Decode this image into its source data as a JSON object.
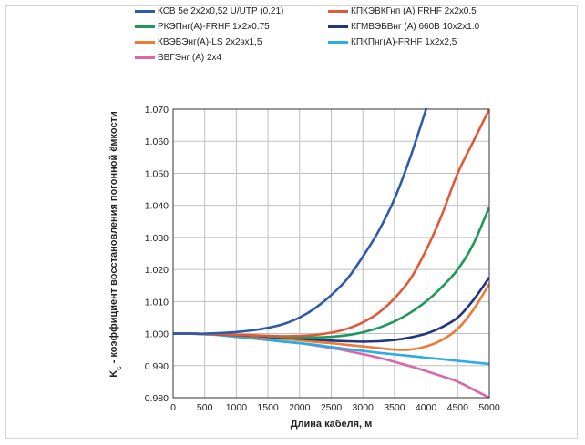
{
  "chart_data": {
    "type": "line",
    "xlabel": "Длина кабеля, м",
    "ylabel": "K",
    "ylabel_sub": "c",
    "ylabel_rest": " - коэффициент восстановления погонной ёмкости",
    "xlim": [
      0,
      5000
    ],
    "ylim": [
      0.98,
      1.07
    ],
    "x_ticks": [
      "0",
      "500",
      "1000",
      "1500",
      "2000",
      "2500",
      "3000",
      "3500",
      "4000",
      "4500",
      "5000"
    ],
    "y_ticks": [
      "0.980",
      "0.990",
      "1.000",
      "1.010",
      "1.020",
      "1.030",
      "1.040",
      "1.050",
      "1.060",
      "1.070"
    ],
    "grid": true,
    "legend_position": "top",
    "x": [
      0,
      250,
      500,
      750,
      1000,
      1250,
      1500,
      1750,
      2000,
      2250,
      2500,
      2750,
      3000,
      3250,
      3500,
      3750,
      4000,
      4250,
      4500,
      4750,
      5000
    ],
    "series": [
      {
        "name": "КСВ 5е 2x2x0,52 U/UTP (0.21)",
        "color": "#2f5aa8",
        "values": [
          1.0,
          1.0,
          1.0,
          1.0002,
          1.0005,
          1.001,
          1.0018,
          1.003,
          1.005,
          1.008,
          1.012,
          1.017,
          1.024,
          1.032,
          1.042,
          1.055,
          1.07,
          null,
          null,
          null,
          null
        ]
      },
      {
        "name": "КПКЭВКГнп (А) FRHF 2x2x0.5",
        "color": "#e4583a",
        "values": [
          1.0,
          1.0,
          0.9999,
          0.9998,
          0.9996,
          0.9995,
          0.9993,
          0.9992,
          0.9993,
          0.9996,
          1.0003,
          1.0015,
          1.0035,
          1.0065,
          1.011,
          1.017,
          1.026,
          1.037,
          1.05,
          1.06,
          1.07
        ]
      },
      {
        "name": "РКЭПнг(А)-FRHF 1x2x0.75",
        "color": "#1e9858",
        "values": [
          1.0,
          1.0,
          0.9999,
          0.9998,
          0.9996,
          0.9994,
          0.9992,
          0.9989,
          0.9988,
          0.9988,
          0.999,
          0.9995,
          1.0004,
          1.0018,
          1.0038,
          1.0065,
          1.01,
          1.0145,
          1.02,
          1.028,
          1.0395
        ]
      },
      {
        "name": "КГМВЭБВнг (А) 660В 10x2x1.0",
        "color": "#223580",
        "values": [
          1.0,
          1.0,
          0.9999,
          0.9997,
          0.9995,
          0.9993,
          0.999,
          0.9987,
          0.9984,
          0.9981,
          0.9978,
          0.9976,
          0.9975,
          0.9976,
          0.998,
          0.9988,
          1.0,
          1.002,
          1.005,
          1.0105,
          1.0175
        ]
      },
      {
        "name": "КВЭВЭнг(А)-LS 2x2эх1,5",
        "color": "#f07a35",
        "values": [
          1.0,
          1.0,
          0.9999,
          0.9997,
          0.9994,
          0.9991,
          0.9987,
          0.9983,
          0.9979,
          0.9974,
          0.997,
          0.9965,
          0.996,
          0.9955,
          0.995,
          0.995,
          0.996,
          0.998,
          1.0015,
          1.0075,
          1.0155
        ]
      },
      {
        "name": "КПКПнг(А)-FRHF 1x2x2,5",
        "color": "#28aee0",
        "values": [
          1.0,
          1.0,
          0.9998,
          0.9995,
          0.999,
          0.9985,
          0.998,
          0.9975,
          0.997,
          0.9965,
          0.9958,
          0.9952,
          0.9946,
          0.994,
          0.9935,
          0.993,
          0.9925,
          0.992,
          0.9915,
          0.991,
          0.9905
        ]
      },
      {
        "name": "ВВГЭнг (А) 2x4",
        "color": "#d866a8",
        "values": [
          1.0,
          1.0,
          0.9998,
          0.9995,
          0.999,
          0.9985,
          0.998,
          0.9975,
          0.997,
          0.9963,
          0.9955,
          0.9946,
          0.9936,
          0.9925,
          0.9912,
          0.9898,
          0.9883,
          0.9867,
          0.985,
          0.9825,
          0.98
        ]
      }
    ]
  }
}
